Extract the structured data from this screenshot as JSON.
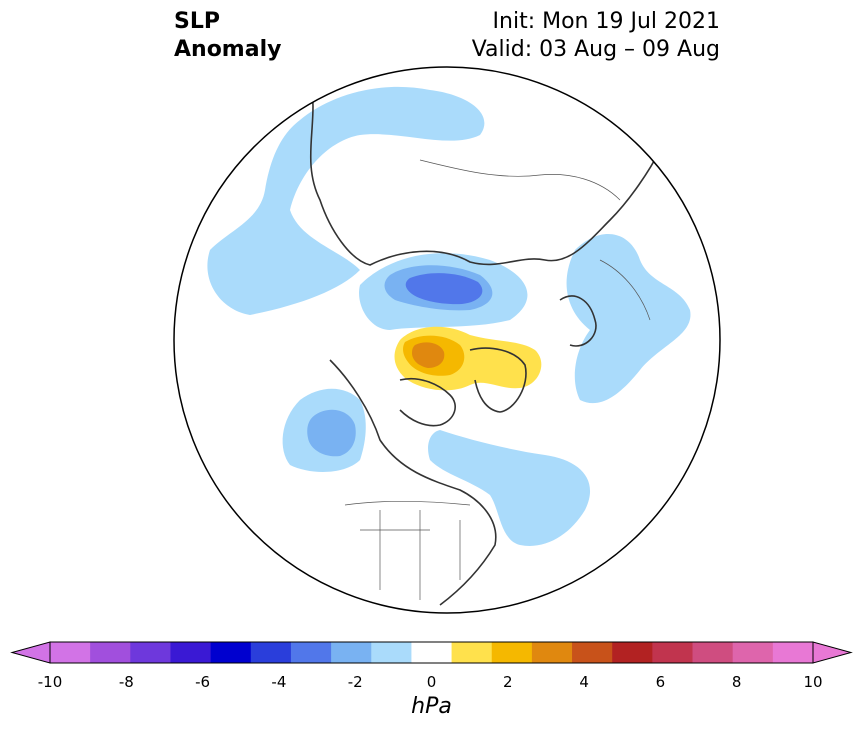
{
  "title": {
    "left_line1": "SLP",
    "left_line2": "Anomaly",
    "right_line1": "Init: Mon 19 Jul 2021",
    "right_line2": "Valid: 03 Aug – 09 Aug"
  },
  "colorbar": {
    "unit": "hPa",
    "tick_labels": [
      "-10",
      "-8",
      "-6",
      "-4",
      "-2",
      "0",
      "2",
      "4",
      "6",
      "8",
      "10"
    ],
    "levels": [
      -10,
      -9,
      -8,
      -7,
      -6,
      -5,
      -4,
      -3,
      -2,
      -1,
      1,
      2,
      3,
      4,
      5,
      6,
      7,
      8,
      9,
      10
    ],
    "colors": [
      "#d273e6",
      "#a14fdd",
      "#6e38dc",
      "#3a19d4",
      "#0000cf",
      "#2a3edb",
      "#5177ea",
      "#79b2f2",
      "#aadbfb",
      "#ffffff",
      "#ffe14c",
      "#f5b800",
      "#e0880f",
      "#c8521a",
      "#b22222",
      "#c1344e",
      "#cf4d80",
      "#de65ac",
      "#e878d5"
    ],
    "under_color": "#d273e6",
    "over_color": "#e878d5"
  },
  "map": {
    "projection": "north-polar-stereographic",
    "anomaly_regions_hPa": [
      {
        "region": "North Pacific / Alaska coast",
        "value": -2
      },
      {
        "region": "Bering Strait / Western Arctic",
        "value": -1
      },
      {
        "region": "East Siberian Sea / central Arctic",
        "value": -4
      },
      {
        "region": "Laptev Sea",
        "value": -3
      },
      {
        "region": "Canadian Arctic Archipelago / Greenland",
        "value": 2
      },
      {
        "region": "Central Canadian Arctic",
        "value": 3
      },
      {
        "region": "Hudson Bay / Labrador",
        "value": -1
      },
      {
        "region": "Northern Europe / Scandinavia",
        "value": -1
      },
      {
        "region": "Western Russia",
        "value": -1
      }
    ]
  }
}
